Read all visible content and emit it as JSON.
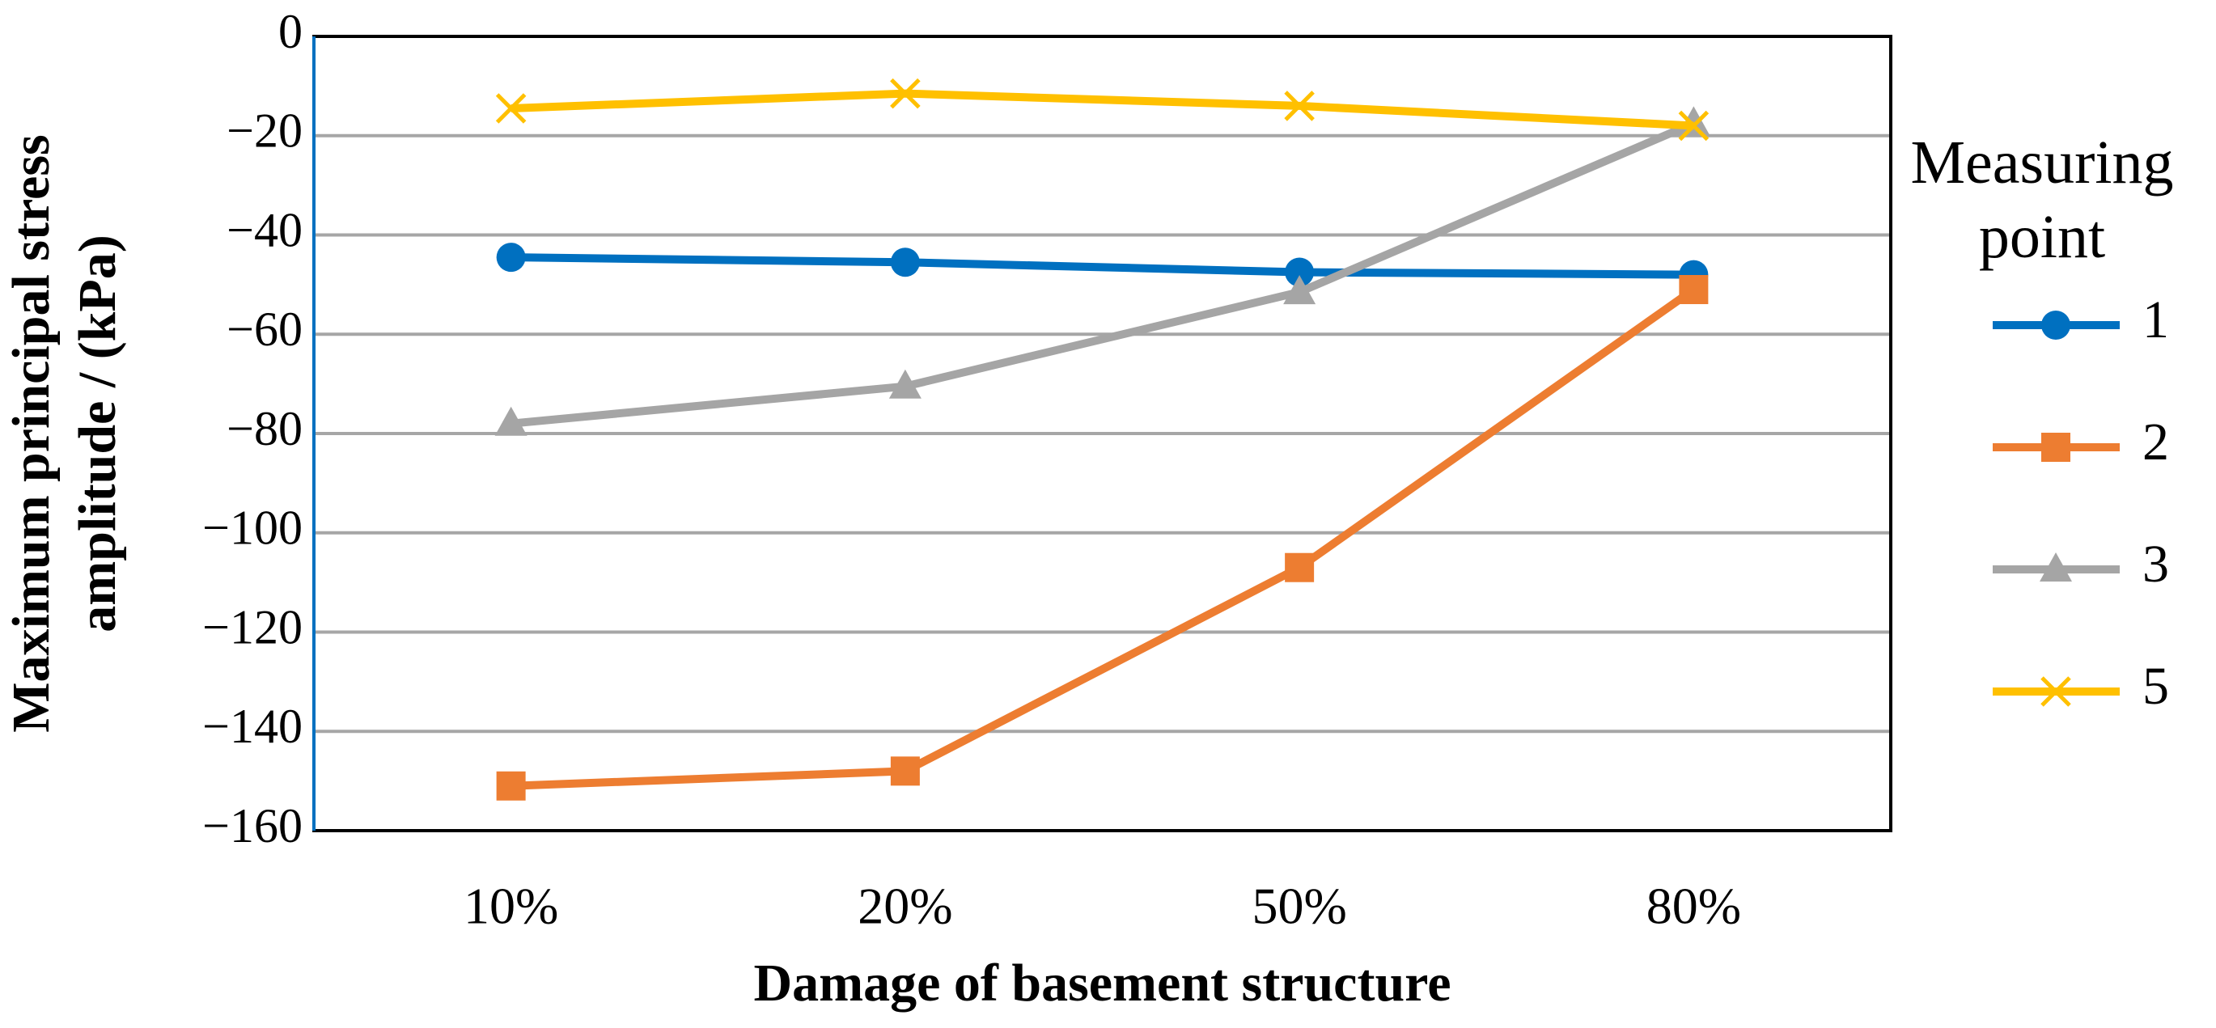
{
  "chart_data": {
    "type": "line",
    "y_label": "Maximum principal stress amplitude / (kPa)",
    "x_label": "Damage of basement structure",
    "legend_title": "Measuring point",
    "categories": [
      "10%",
      "20%",
      "50%",
      "80%"
    ],
    "series": [
      {
        "name": "1",
        "color": "#0070c0",
        "marker": "circle",
        "values": [
          -44.5,
          -45.5,
          -47.5,
          -48
        ]
      },
      {
        "name": "2",
        "color": "#ed7d31",
        "marker": "square",
        "values": [
          -151,
          -148,
          -107,
          -51
        ]
      },
      {
        "name": "3",
        "color": "#a5a5a5",
        "marker": "triangle",
        "values": [
          -78,
          -70.5,
          -51.5,
          -17.5
        ]
      },
      {
        "name": "5",
        "color": "#ffc000",
        "marker": "x",
        "values": [
          -14.5,
          -11.5,
          -14,
          -18
        ]
      }
    ],
    "ylim": [
      -160,
      0
    ],
    "yticks": [
      {
        "value": -160,
        "label": "−160"
      },
      {
        "value": -140,
        "label": "−140"
      },
      {
        "value": -120,
        "label": "−120"
      },
      {
        "value": -100,
        "label": "−100"
      },
      {
        "value": -80,
        "label": "−80"
      },
      {
        "value": -60,
        "label": "−60"
      },
      {
        "value": -40,
        "label": "−40"
      },
      {
        "value": -20,
        "label": "−20"
      },
      0
    ],
    "grid": true,
    "legend": "right"
  }
}
